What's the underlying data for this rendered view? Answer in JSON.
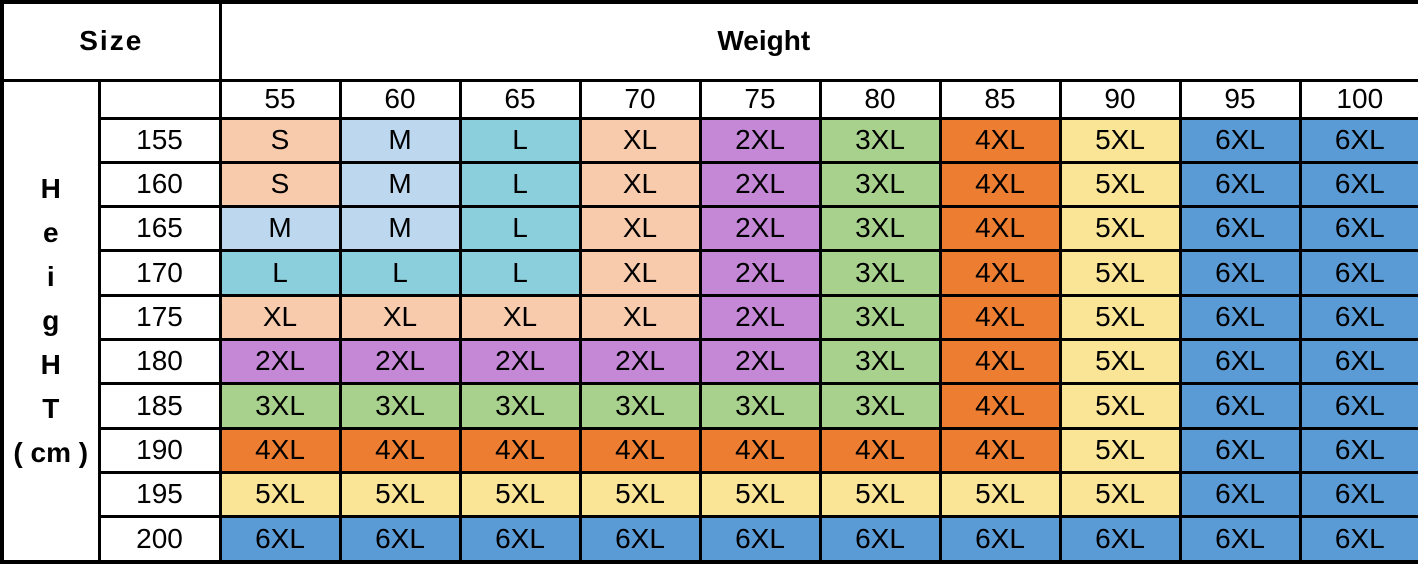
{
  "header": {
    "size_label": "Size",
    "weight_label": "Weight"
  },
  "side_label": {
    "lines": [
      "H",
      "e",
      "i",
      "g",
      "H",
      "T",
      "( cm )"
    ]
  },
  "size_colors": {
    "S": "#F8CBAD",
    "M": "#BDD7EE",
    "L": "#8CCFDC",
    "XL": "#F8CBAD",
    "2XL": "#C488D6",
    "3XL": "#A9D18E",
    "4XL": "#ED7D31",
    "5XL": "#FAE596",
    "6XL": "#5B9BD5"
  },
  "style": {
    "border_color": "#000000",
    "background": "#FFFFFF",
    "text_color": "#000000"
  },
  "chart_data": {
    "type": "table",
    "title": "Size",
    "xlabel": "Weight",
    "ylabel": "HeigHT ( cm )",
    "x": [
      "55",
      "60",
      "65",
      "70",
      "75",
      "80",
      "85",
      "90",
      "95",
      "100"
    ],
    "y": [
      "155",
      "160",
      "165",
      "170",
      "175",
      "180",
      "185",
      "190",
      "195",
      "200"
    ],
    "values": [
      [
        "S",
        "M",
        "L",
        "XL",
        "2XL",
        "3XL",
        "4XL",
        "5XL",
        "6XL",
        "6XL"
      ],
      [
        "S",
        "M",
        "L",
        "XL",
        "2XL",
        "3XL",
        "4XL",
        "5XL",
        "6XL",
        "6XL"
      ],
      [
        "M",
        "M",
        "L",
        "XL",
        "2XL",
        "3XL",
        "4XL",
        "5XL",
        "6XL",
        "6XL"
      ],
      [
        "L",
        "L",
        "L",
        "XL",
        "2XL",
        "3XL",
        "4XL",
        "5XL",
        "6XL",
        "6XL"
      ],
      [
        "XL",
        "XL",
        "XL",
        "XL",
        "2XL",
        "3XL",
        "4XL",
        "5XL",
        "6XL",
        "6XL"
      ],
      [
        "2XL",
        "2XL",
        "2XL",
        "2XL",
        "2XL",
        "3XL",
        "4XL",
        "5XL",
        "6XL",
        "6XL"
      ],
      [
        "3XL",
        "3XL",
        "3XL",
        "3XL",
        "3XL",
        "3XL",
        "4XL",
        "5XL",
        "6XL",
        "6XL"
      ],
      [
        "4XL",
        "4XL",
        "4XL",
        "4XL",
        "4XL",
        "4XL",
        "4XL",
        "5XL",
        "6XL",
        "6XL"
      ],
      [
        "5XL",
        "5XL",
        "5XL",
        "5XL",
        "5XL",
        "5XL",
        "5XL",
        "5XL",
        "6XL",
        "6XL"
      ],
      [
        "6XL",
        "6XL",
        "6XL",
        "6XL",
        "6XL",
        "6XL",
        "6XL",
        "6XL",
        "6XL",
        "6XL"
      ]
    ],
    "legend": "cell color encodes recommended garment size",
    "grid": true
  }
}
